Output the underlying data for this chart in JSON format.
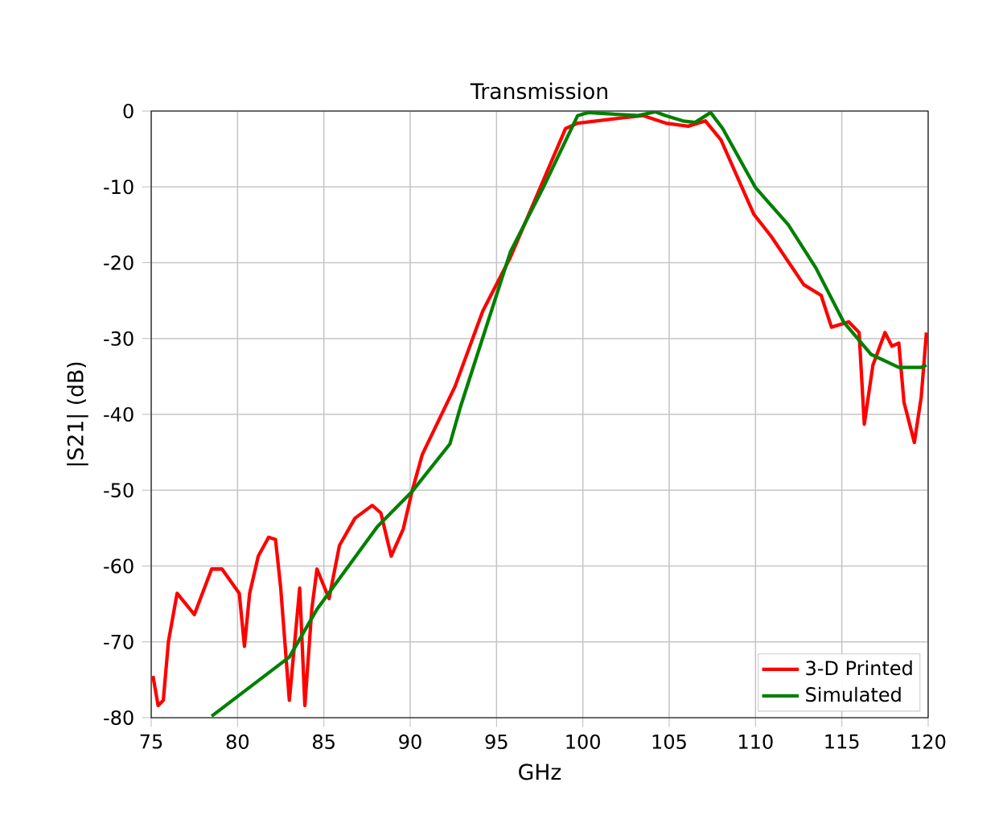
{
  "chart_data": {
    "type": "line",
    "title": "Transmission",
    "xlabel": "GHz",
    "ylabel": "|S21| (dB)",
    "xlim": [
      75,
      120
    ],
    "ylim": [
      -80,
      0
    ],
    "xticks": [
      75,
      80,
      85,
      90,
      95,
      100,
      105,
      110,
      115,
      120
    ],
    "yticks": [
      -80,
      -70,
      -60,
      -50,
      -40,
      -30,
      -20,
      -10,
      0
    ],
    "grid": true,
    "legend": "bottom right",
    "series": [
      {
        "name": "3-D Printed",
        "color": "#ff0000",
        "x": [
          75.1,
          75.4,
          75.7,
          76.0,
          76.5,
          77.5,
          78.5,
          79.1,
          80.1,
          80.4,
          80.7,
          81.2,
          81.8,
          82.2,
          82.5,
          83.0,
          83.6,
          83.9,
          84.3,
          84.6,
          85.3,
          85.9,
          86.8,
          87.8,
          88.3,
          88.9,
          89.6,
          90.1,
          90.7,
          92.6,
          94.2,
          95.8,
          97.4,
          99.0,
          99.7,
          102.3,
          103.5,
          104.8,
          106.1,
          107.1,
          108.0,
          109.9,
          110.9,
          112.8,
          113.8,
          114.4,
          115.4,
          116.0,
          116.3,
          116.8,
          117.5,
          117.9,
          118.3,
          118.6,
          119.2,
          119.6,
          119.9
        ],
        "values": [
          -74.5,
          -78.4,
          -77.7,
          -69.9,
          -63.6,
          -66.4,
          -60.4,
          -60.4,
          -63.6,
          -70.6,
          -63.6,
          -58.7,
          -56.2,
          -56.5,
          -62.9,
          -77.7,
          -62.9,
          -78.4,
          -65.7,
          -60.4,
          -64.3,
          -57.3,
          -53.7,
          -52.0,
          -53.0,
          -58.7,
          -55.1,
          -50.2,
          -45.3,
          -36.3,
          -26.4,
          -19.3,
          -10.8,
          -2.3,
          -1.6,
          -0.9,
          -0.6,
          -1.6,
          -2.0,
          -1.3,
          -3.8,
          -13.6,
          -16.5,
          -22.9,
          -24.3,
          -28.5,
          -27.8,
          -29.2,
          -41.3,
          -33.5,
          -29.2,
          -31.0,
          -30.6,
          -38.4,
          -43.7,
          -37.7,
          -29.2
        ]
      },
      {
        "name": "Simulated",
        "color": "#008000",
        "x": [
          78.5,
          83.0,
          84.6,
          88.1,
          90.1,
          92.3,
          92.9,
          95.8,
          97.7,
          99.7,
          100.3,
          103.2,
          104.2,
          104.8,
          105.8,
          106.5,
          107.4,
          108.1,
          110.0,
          111.9,
          113.5,
          115.1,
          116.7,
          118.3,
          119.6,
          119.9
        ],
        "values": [
          -79.8,
          -72.0,
          -65.7,
          -54.8,
          -50.2,
          -43.9,
          -39.1,
          -18.6,
          -10.1,
          -0.6,
          -0.2,
          -0.6,
          -0.1,
          -0.6,
          -1.3,
          -1.5,
          -0.2,
          -2.3,
          -10.1,
          -15.0,
          -20.7,
          -27.8,
          -32.1,
          -33.8,
          -33.8,
          -33.5
        ]
      }
    ]
  }
}
